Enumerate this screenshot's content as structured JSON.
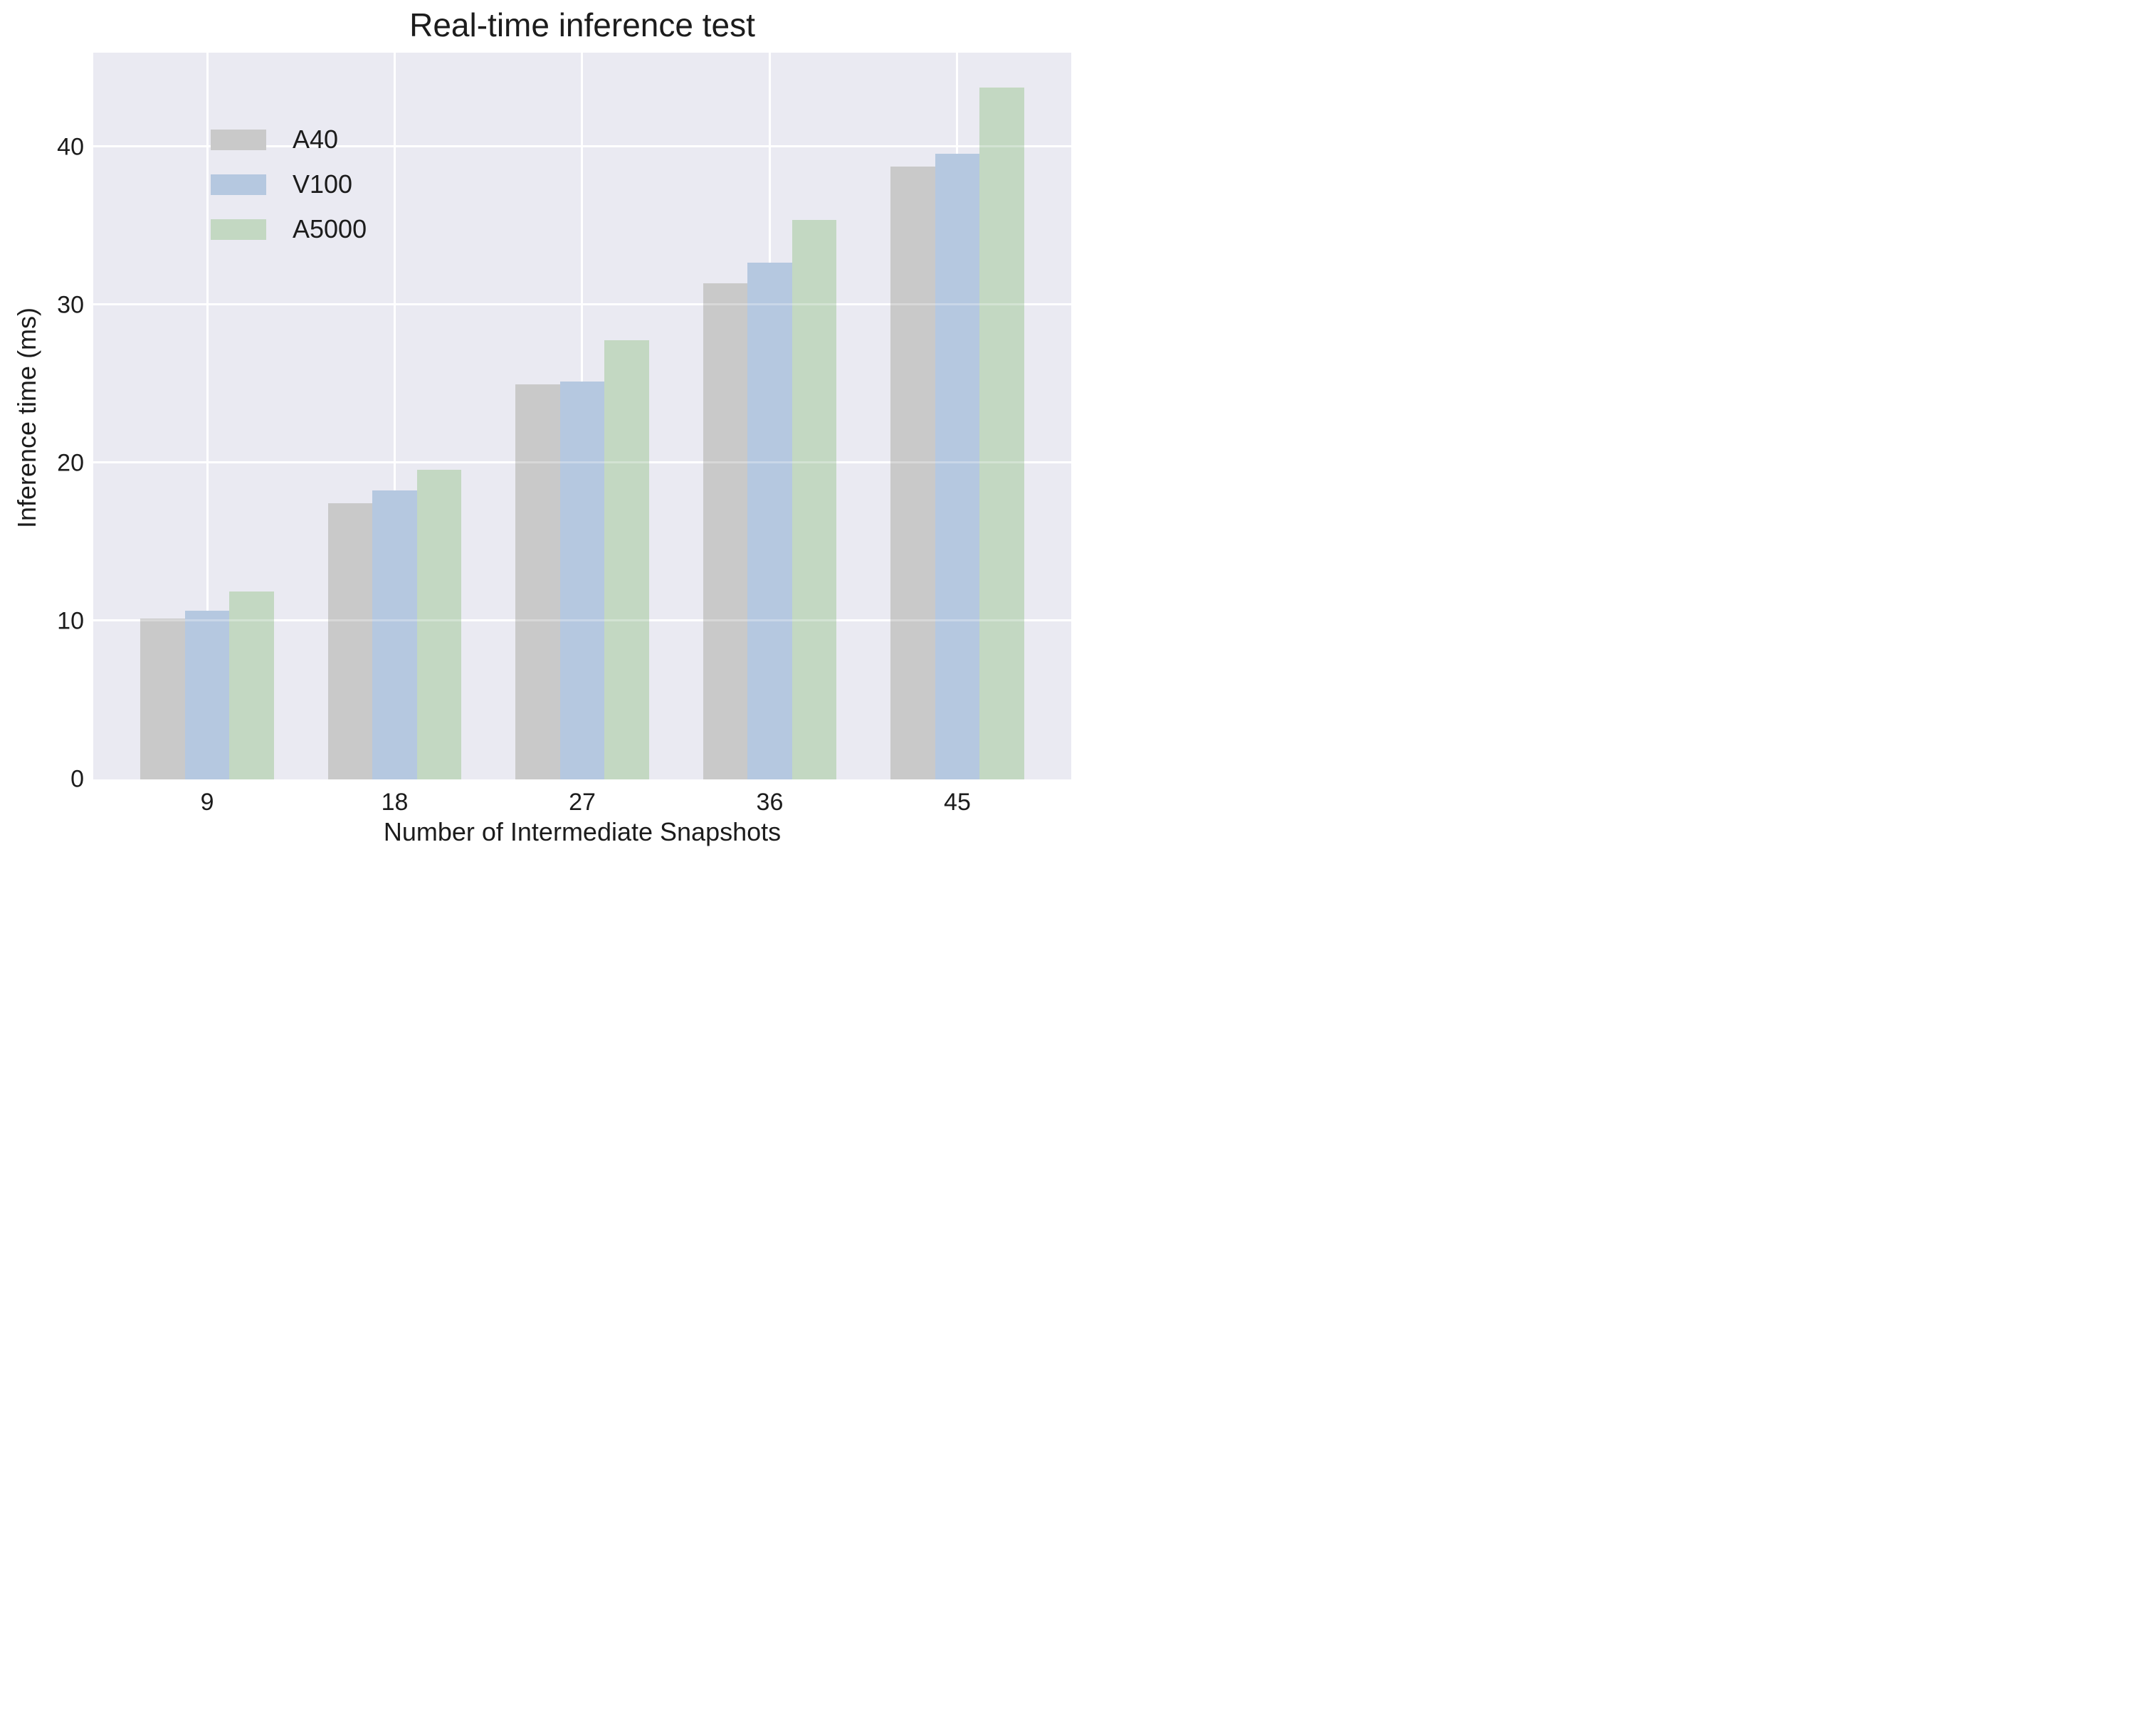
{
  "chart_data": {
    "type": "bar",
    "title": "Real-time inference test",
    "xlabel": "Number of Intermediate Snapshots",
    "ylabel": "Inference time (ms)",
    "categories": [
      "9",
      "18",
      "27",
      "36",
      "45"
    ],
    "series": [
      {
        "name": "A40",
        "color": "#c9c9c9",
        "values": [
          10.2,
          17.5,
          25.0,
          31.4,
          38.8
        ]
      },
      {
        "name": "V100",
        "color": "#b5c8e0",
        "values": [
          10.7,
          18.3,
          25.2,
          32.7,
          39.6
        ]
      },
      {
        "name": "A5000",
        "color": "#c3d8c2",
        "values": [
          11.9,
          19.6,
          27.8,
          35.4,
          43.8
        ]
      }
    ],
    "yticks": [
      0,
      10,
      20,
      30,
      40
    ],
    "ylim": [
      0,
      46
    ],
    "grid": true,
    "grid_color": "#ffffff",
    "plot_bg": "#eaeaf2",
    "legend_position": "upper left",
    "layout": {
      "side_pad_pct": 2.06,
      "bar_width_pct_of_group": 23.7
    }
  }
}
